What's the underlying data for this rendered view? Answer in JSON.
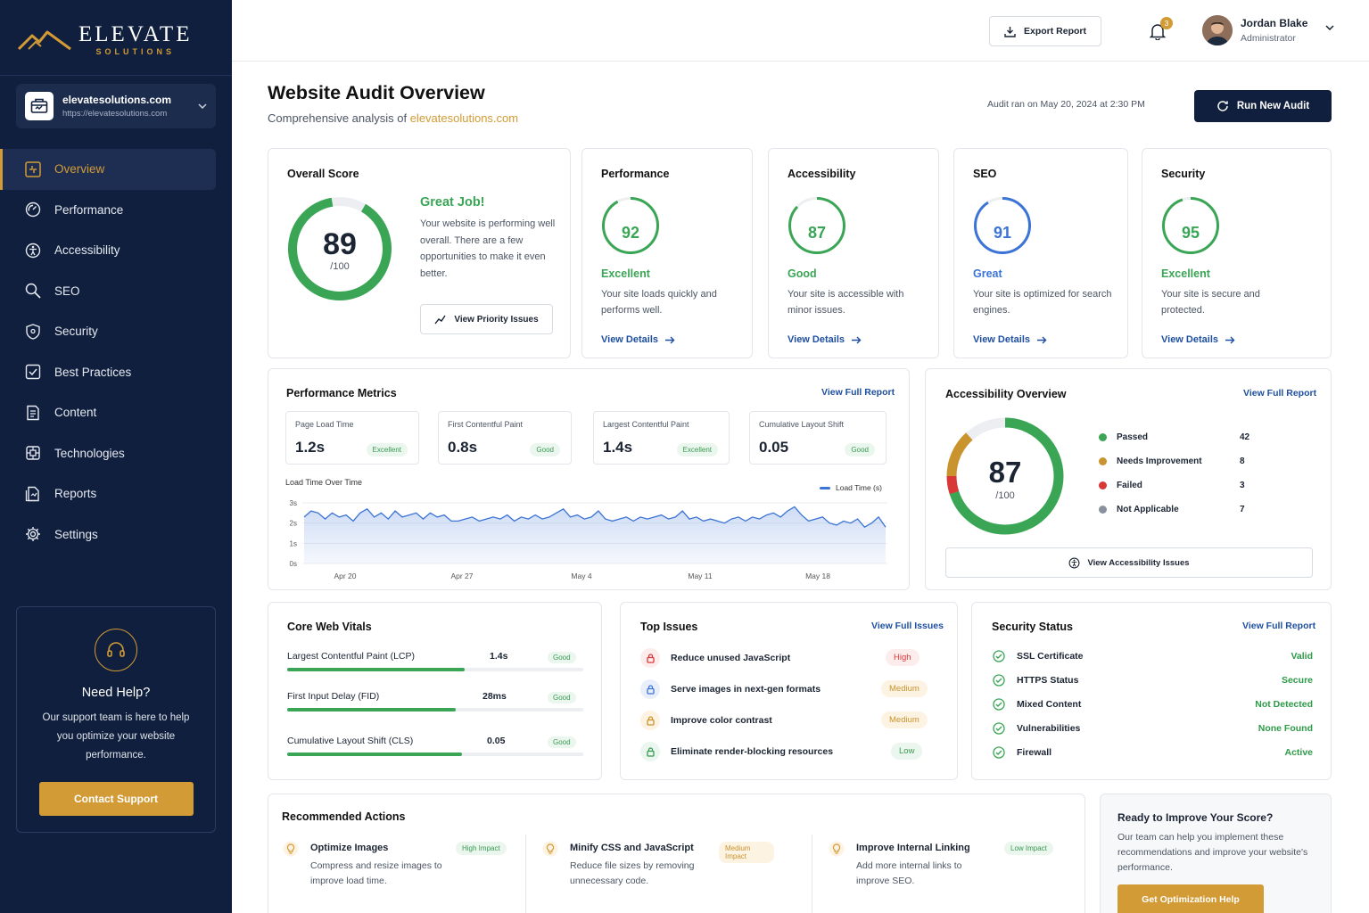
{
  "brand": {
    "name": "ELEVATE",
    "tagline": "SOLUTIONS",
    "accent": "#d29b36",
    "navy": "#0f1f3d"
  },
  "site": {
    "name": "elevatesolutions.com",
    "url": "https://elevatesolutions.com"
  },
  "nav": [
    {
      "label": "Overview",
      "icon": "grid-icon",
      "active": true
    },
    {
      "label": "Performance",
      "icon": "gauge-icon"
    },
    {
      "label": "Accessibility",
      "icon": "accessibility-icon"
    },
    {
      "label": "SEO",
      "icon": "search-icon"
    },
    {
      "label": "Security",
      "icon": "shield-icon"
    },
    {
      "label": "Best Practices",
      "icon": "check-square-icon"
    },
    {
      "label": "Content",
      "icon": "document-icon"
    },
    {
      "label": "Technologies",
      "icon": "chip-icon"
    },
    {
      "label": "Reports",
      "icon": "report-icon"
    },
    {
      "label": "Settings",
      "icon": "gear-icon"
    }
  ],
  "help": {
    "title": "Need Help?",
    "text": "Our support team is here to help you optimize your website performance.",
    "button": "Contact Support"
  },
  "topbar": {
    "export": "Export Report",
    "notifications": "3",
    "user_name": "Jordan Blake",
    "user_role": "Administrator"
  },
  "header": {
    "title": "Website Audit Overview",
    "subtitle_prefix": "Comprehensive analysis of",
    "subtitle_link": "elevatesolutions.com",
    "audit_time": "Audit ran on May 20, 2024 at 2:30 PM",
    "run_button": "Run New Audit"
  },
  "overall": {
    "title": "Overall Score",
    "score": "89",
    "outof": "/100",
    "score_value": 89,
    "headline": "Great Job!",
    "text": "Your website is performing well overall. There are a few opportunities to make it even better.",
    "button": "View Priority Issues"
  },
  "scores": [
    {
      "title": "Performance",
      "score": "92",
      "value": 92,
      "label": "Excellent",
      "desc": "Your site loads quickly and performs well.",
      "link": "View Details",
      "color": "#3aa655"
    },
    {
      "title": "Accessibility",
      "score": "87",
      "value": 87,
      "label": "Good",
      "desc": "Your site is accessible with minor issues.",
      "link": "View Details",
      "color": "#3aa655"
    },
    {
      "title": "SEO",
      "score": "91",
      "value": 91,
      "label": "Great",
      "desc": "Your site is optimized for search engines.",
      "link": "View Details",
      "color": "#3b73d6"
    },
    {
      "title": "Security",
      "score": "95",
      "value": 95,
      "label": "Excellent",
      "desc": "Your site is secure and protected.",
      "link": "View Details",
      "color": "#3aa655"
    }
  ],
  "perf": {
    "title": "Performance Metrics",
    "link": "View Full Report",
    "metrics": [
      {
        "label": "Page Load Time",
        "value": "1.2s",
        "badge": "Excellent"
      },
      {
        "label": "First Contentful Paint",
        "value": "0.8s",
        "badge": "Good"
      },
      {
        "label": "Largest Contentful Paint",
        "value": "1.4s",
        "badge": "Excellent"
      },
      {
        "label": "Cumulative Layout Shift",
        "value": "0.05",
        "badge": "Good"
      }
    ],
    "chart_title": "Load Time Over Time"
  },
  "chart_data": {
    "type": "area",
    "title": "Load Time Over Time",
    "series": [
      {
        "name": "Load Time (s)",
        "values": [
          2.3,
          2.6,
          2.5,
          2.2,
          2.5,
          2.3,
          2.4,
          2.1,
          2.5,
          2.7,
          2.3,
          2.5,
          2.2,
          2.6,
          2.3,
          2.4,
          2.5,
          2.2,
          2.5,
          2.3,
          2.4,
          2.1,
          2.1,
          2.2,
          2.3,
          2.1,
          2.2,
          2.3,
          2.2,
          2.4,
          2.1,
          2.3,
          2.2,
          2.4,
          2.2,
          2.3,
          2.5,
          2.7,
          2.3,
          2.4,
          2.2,
          2.3,
          2.6,
          2.2,
          2.1,
          2.2,
          2.3,
          2.1,
          2.3,
          2.2,
          2.3,
          2.4,
          2.2,
          2.3,
          2.6,
          2.2,
          2.3,
          2.1,
          2.2,
          2.1,
          2.0,
          2.2,
          2.3,
          2.1,
          2.3,
          2.2,
          2.4,
          2.5,
          2.3,
          2.6,
          2.8,
          2.4,
          2.1,
          2.2,
          2.3,
          2.0,
          1.9,
          2.1,
          2.0,
          2.2,
          1.8,
          2.0,
          2.3,
          1.8
        ]
      }
    ],
    "x_ticks": [
      "Apr 20",
      "Apr 27",
      "May 4",
      "May 11",
      "May 18"
    ],
    "y_ticks": [
      "0s",
      "1s",
      "2s",
      "3s"
    ],
    "ylim": [
      0,
      3
    ],
    "legend": "top-right",
    "grid": true
  },
  "acc": {
    "title": "Accessibility Overview",
    "link": "View Full Report",
    "score": "87",
    "outof": "/100",
    "rows": [
      {
        "label": "Passed",
        "value": "42",
        "color": "#3aa655",
        "count": 42
      },
      {
        "label": "Needs Improvement",
        "value": "8",
        "color": "#c9932e",
        "count": 8
      },
      {
        "label": "Failed",
        "value": "3",
        "color": "#d93838",
        "count": 3
      },
      {
        "label": "Not Applicable",
        "value": "7",
        "color": "#8a919c",
        "count": 7
      }
    ],
    "button": "View Accessibility Issues"
  },
  "cwv": {
    "title": "Core Web Vitals",
    "items": [
      {
        "name": "Largest Contentful Paint (LCP)",
        "value": "1.4s",
        "badge": "Good",
        "fill": 0.6
      },
      {
        "name": "First Input Delay (FID)",
        "value": "28ms",
        "badge": "Good",
        "fill": 0.57
      },
      {
        "name": "Cumulative Layout Shift (CLS)",
        "value": "0.05",
        "badge": "Good",
        "fill": 0.59
      }
    ]
  },
  "issues": {
    "title": "Top Issues",
    "link": "View Full Issues",
    "items": [
      {
        "name": "Reduce unused JavaScript",
        "badge": "High",
        "level": "high",
        "icon": "lock-icon"
      },
      {
        "name": "Serve images in next-gen formats",
        "badge": "Medium",
        "level": "medium",
        "icon": "image-icon"
      },
      {
        "name": "Improve color contrast",
        "badge": "Medium",
        "level": "medium",
        "icon": "contrast-icon"
      },
      {
        "name": "Eliminate render-blocking resources",
        "badge": "Low",
        "level": "low",
        "icon": "lock-icon"
      }
    ]
  },
  "security": {
    "title": "Security Status",
    "link": "View Full Report",
    "items": [
      {
        "name": "SSL Certificate",
        "value": "Valid"
      },
      {
        "name": "HTTPS Status",
        "value": "Secure"
      },
      {
        "name": "Mixed Content",
        "value": "Not Detected"
      },
      {
        "name": "Vulnerabilities",
        "value": "None Found"
      },
      {
        "name": "Firewall",
        "value": "Active"
      }
    ]
  },
  "recommended": {
    "title": "Recommended Actions",
    "items": [
      {
        "title": "Optimize Images",
        "desc": "Compress and resize images to improve load time.",
        "badge": "High Impact",
        "level": "high"
      },
      {
        "title": "Minify CSS and JavaScript",
        "desc": "Reduce file sizes by removing unnecessary code.",
        "badge": "Medium Impact",
        "level": "medium"
      },
      {
        "title": "Improve Internal Linking",
        "desc": "Add more internal links to improve SEO.",
        "badge": "Low Impact",
        "level": "low"
      }
    ]
  },
  "ready": {
    "title": "Ready to Improve Your Score?",
    "text": "Our team can help you implement these recommendations and improve your website's performance.",
    "button": "Get Optimization Help"
  }
}
